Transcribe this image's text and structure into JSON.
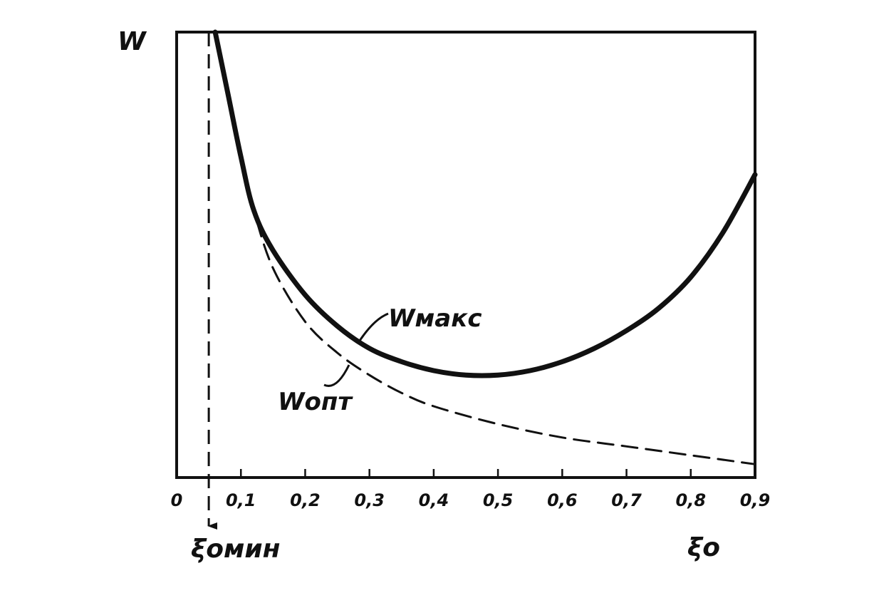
{
  "chart_data": {
    "type": "line",
    "title": "",
    "ylabel": "W",
    "xlabel": "ξo",
    "xlim": [
      0,
      0.9
    ],
    "x_ticks": [
      "0",
      "0,1",
      "0,2",
      "0,3",
      "0,4",
      "0,5",
      "0,6",
      "0,7",
      "0,8",
      "0,9"
    ],
    "x_tick_values": [
      0,
      0.1,
      0.2,
      0.3,
      0.4,
      0.5,
      0.6,
      0.7,
      0.8,
      0.9
    ],
    "y_ticks": [],
    "grid": false,
    "legend": "none",
    "series": [
      {
        "name": "Wмакс",
        "style": "solid",
        "color": "#111111",
        "x": [
          0.06,
          0.08,
          0.1,
          0.12,
          0.15,
          0.2,
          0.25,
          0.3,
          0.35,
          0.4,
          0.45,
          0.5,
          0.55,
          0.6,
          0.65,
          0.7,
          0.75,
          0.8,
          0.85,
          0.9
        ],
        "y": [
          1.0,
          0.86,
          0.72,
          0.6,
          0.51,
          0.41,
          0.34,
          0.29,
          0.26,
          0.24,
          0.23,
          0.23,
          0.24,
          0.26,
          0.29,
          0.33,
          0.38,
          0.45,
          0.55,
          0.68
        ]
      },
      {
        "name": "Wопт",
        "style": "dashed",
        "color": "#111111",
        "x": [
          0.06,
          0.08,
          0.1,
          0.12,
          0.15,
          0.2,
          0.25,
          0.3,
          0.35,
          0.4,
          0.5,
          0.6,
          0.7,
          0.8,
          0.9
        ],
        "y": [
          1.0,
          0.86,
          0.72,
          0.6,
          0.47,
          0.35,
          0.28,
          0.23,
          0.19,
          0.16,
          0.12,
          0.09,
          0.07,
          0.05,
          0.03
        ]
      }
    ],
    "annotations": [
      {
        "text": "ξомин",
        "x": 0.05,
        "style": "dashed-arrow-vertical"
      }
    ]
  }
}
